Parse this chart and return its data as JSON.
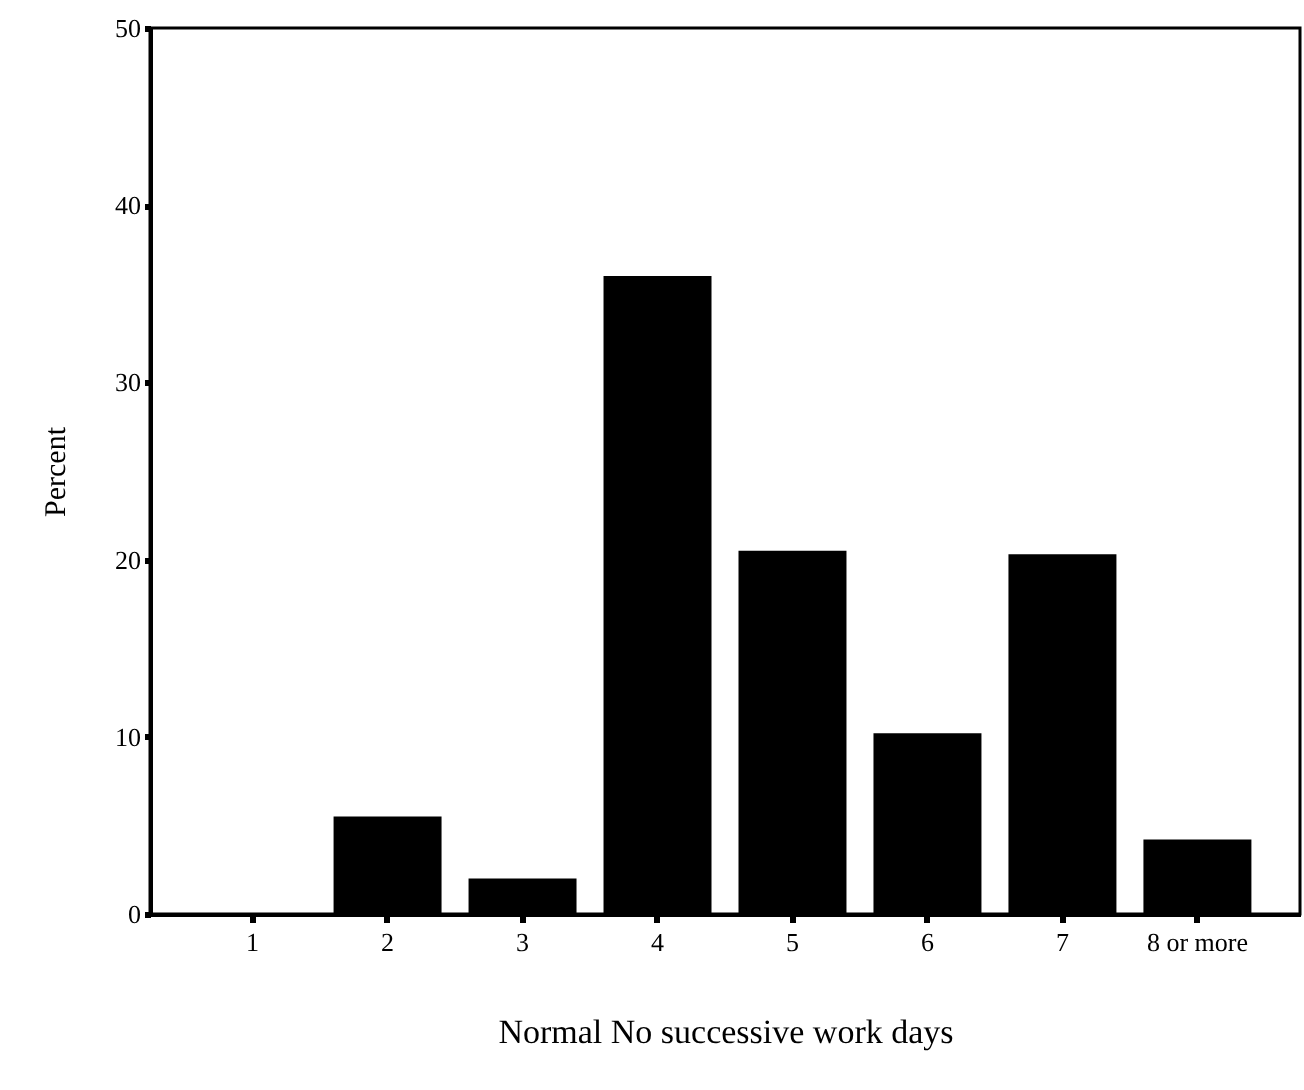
{
  "chart_data": {
    "type": "bar",
    "xlabel": "Normal No successive work days",
    "ylabel": "Percent",
    "categories": [
      "1",
      "2",
      "3",
      "4",
      "5",
      "6",
      "7",
      "8 or more"
    ],
    "values": [
      0,
      5.5,
      2.0,
      36.0,
      20.5,
      10.2,
      20.3,
      4.2
    ],
    "color": "#000000",
    "ylim": [
      0,
      50
    ],
    "yticks": [
      0,
      10,
      20,
      30,
      40,
      50
    ],
    "grid": false
  }
}
